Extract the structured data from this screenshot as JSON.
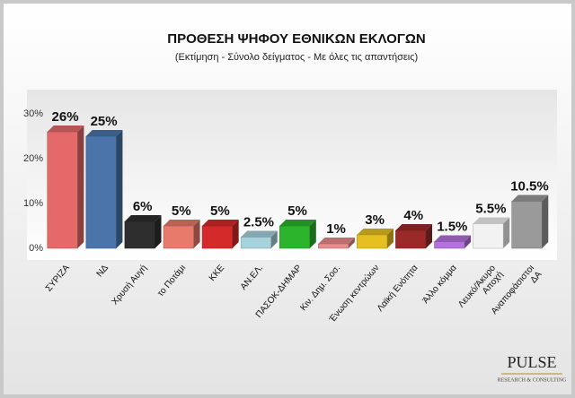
{
  "chart_data": {
    "type": "bar3d",
    "title": "ΠΡΟΘΕΣΗ ΨΗΦΟΥ ΕΘΝΙΚΩΝ ΕΚΛΟΓΩΝ",
    "subtitle": "(Εκτίμηση - Σύνολο δείγματος - Με όλες τις απαντήσεις)",
    "categories": [
      "ΣΥΡΙΖΑ",
      "ΝΔ",
      "Χρυσή Αυγή",
      "το Ποτάμι",
      "ΚΚΕ",
      "ΑΝ.ΕΛ.",
      "ΠΑΣΟΚ-ΔΗΜΑΡ",
      "Κιν. Δημ. Σοσ.",
      "Ένωση κεντρώων",
      "Λαϊκή Ενότητα",
      "Άλλο κόμμα",
      "Λευκό/Άκυρο\nΑποχή",
      "Αναποφάσιστοι\nΔΑ"
    ],
    "values": [
      26,
      25,
      6,
      5,
      5,
      2.5,
      5,
      1,
      3,
      4,
      1.5,
      5.5,
      10.5
    ],
    "value_labels": [
      "26%",
      "25%",
      "6%",
      "5%",
      "5%",
      "2.5%",
      "5%",
      "1%",
      "3%",
      "4%",
      "1.5%",
      "5.5%",
      "10.5%"
    ],
    "colors": [
      "#e46a6a",
      "#4a74aa",
      "#2e2e2e",
      "#e87a6c",
      "#d42a2a",
      "#a6d2dc",
      "#2cb42c",
      "#e88c8c",
      "#e6c020",
      "#9a2a2a",
      "#b470dc",
      "#f2f2f2",
      "#9a9a9a"
    ],
    "ylim": [
      0,
      30
    ],
    "yticks": [
      {
        "value": 0,
        "label": "0%"
      },
      {
        "value": 10,
        "label": "10%"
      },
      {
        "value": 20,
        "label": "20%"
      },
      {
        "value": 30,
        "label": "30%"
      }
    ],
    "grid": false
  },
  "logo": {
    "name": "PULSE",
    "tagline": "RESEARCH & CONSULTING"
  }
}
